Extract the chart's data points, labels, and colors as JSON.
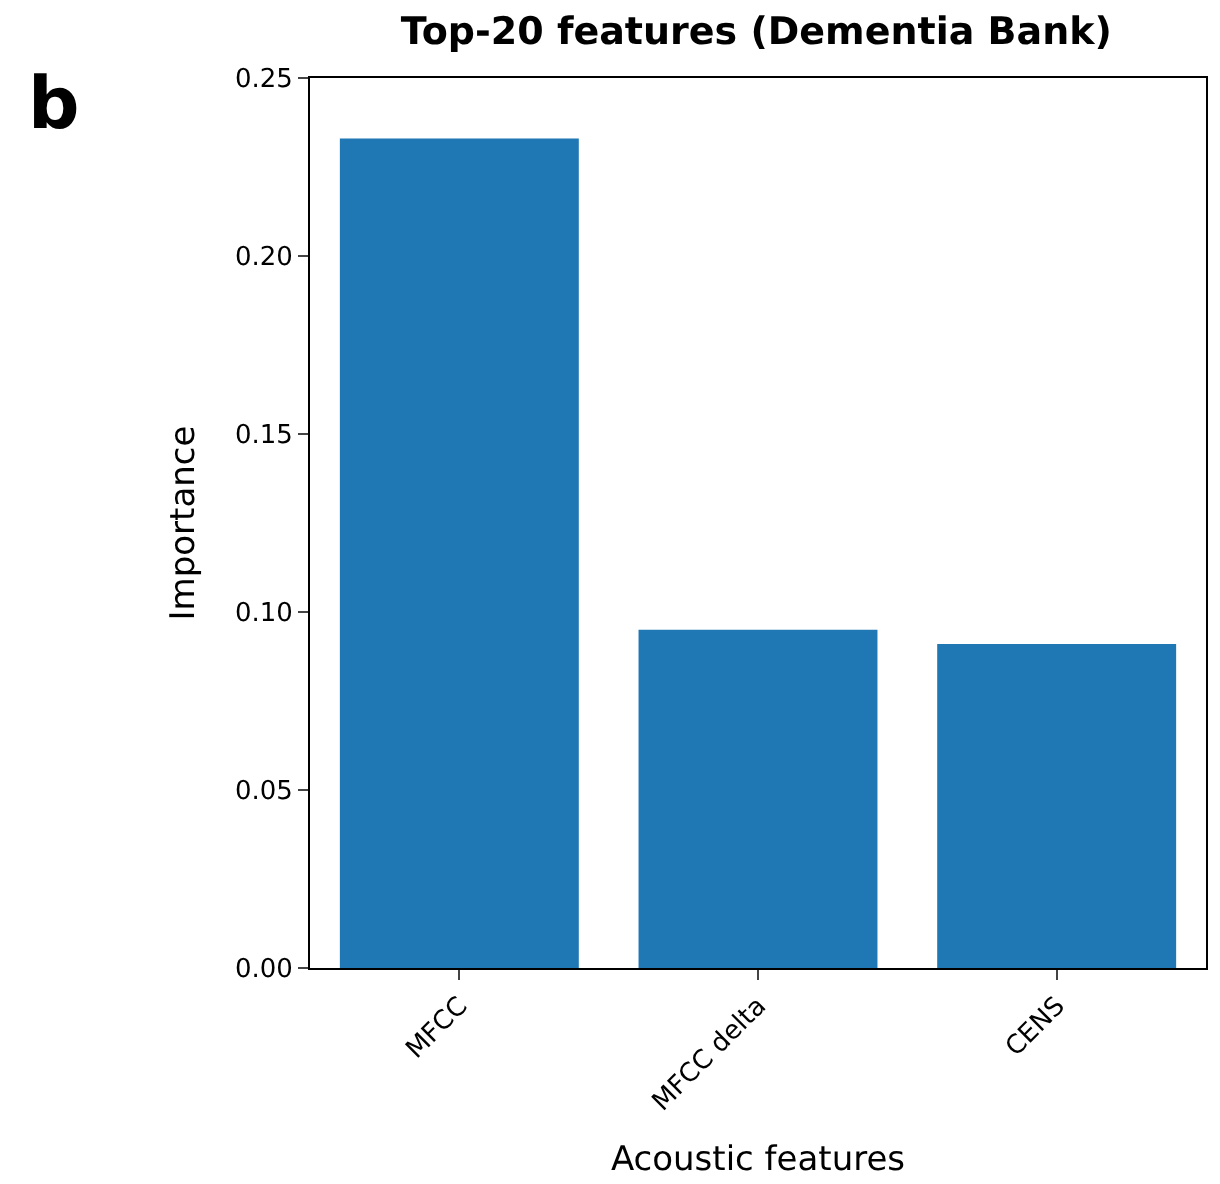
{
  "chart_data": {
    "type": "bar",
    "title": "Top-20 features (Dementia Bank)",
    "xlabel": "Acoustic features",
    "ylabel": "Importance",
    "annotations": [
      "b"
    ],
    "categories": [
      "MFCC",
      "MFCC delta",
      "CENS"
    ],
    "values": [
      0.233,
      0.095,
      0.091
    ],
    "color": "#1f77b4",
    "ylim": [
      0,
      0.25
    ],
    "yticks": [
      {
        "value": 0,
        "label": "0.00"
      },
      0.05,
      {
        "value": 0.1,
        "label": "0.10"
      },
      0.15,
      {
        "value": 0.2,
        "label": "0.20"
      },
      0.25
    ]
  }
}
